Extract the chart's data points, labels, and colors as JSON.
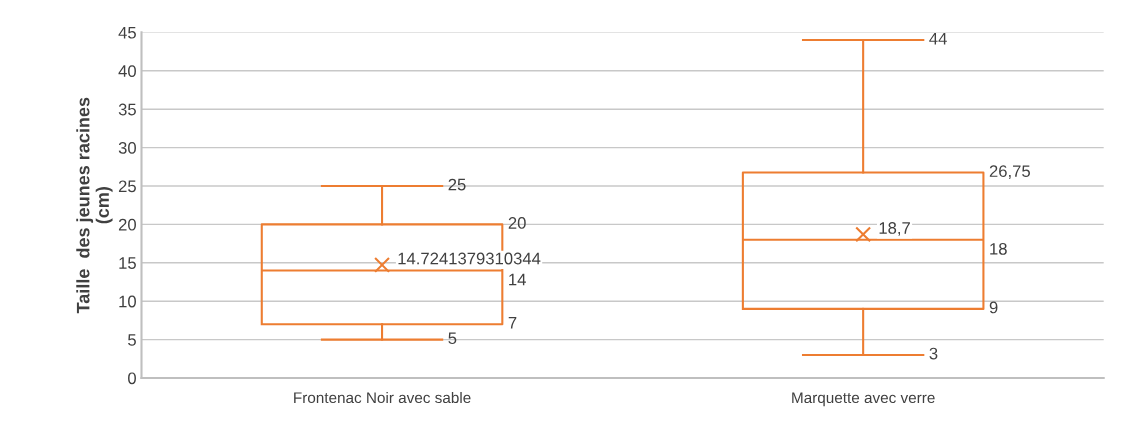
{
  "chart_data": {
    "type": "box",
    "ylabel": "Taille  des jeunes racines\n(cm)",
    "categories": [
      "Frontenac Noir avec sable",
      "Marquette avec verre"
    ],
    "color": "#ed7d31",
    "boxes": [
      {
        "low": 5,
        "q1": 7,
        "median": 14,
        "q3": 20,
        "high": 25,
        "mean": 14.7241379310344
      },
      {
        "low": 3,
        "q1": 9,
        "median": 18,
        "q3": 26.75,
        "high": 44,
        "mean": 18.7
      }
    ],
    "ylim": [
      0,
      45
    ],
    "yticks": [
      0,
      5,
      10,
      15,
      20,
      25,
      30,
      35,
      40,
      45
    ],
    "grid": "y",
    "marker": "cross",
    "annotations": [
      "25",
      "20",
      "14.7241379310344",
      "14",
      "7",
      "5",
      "44",
      "26,75",
      "18,7",
      "18",
      "9",
      "3"
    ]
  }
}
